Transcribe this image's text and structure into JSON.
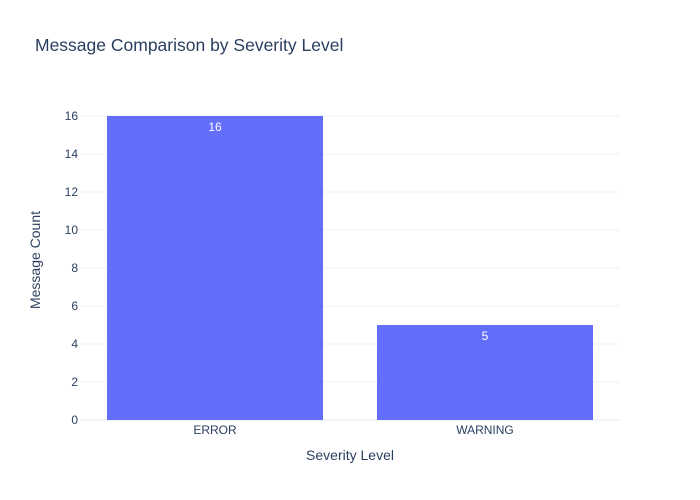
{
  "chart_data": {
    "type": "bar",
    "title": "Message Comparison by Severity Level",
    "xlabel": "Severity Level",
    "ylabel": "Message Count",
    "categories": [
      "ERROR",
      "WARNING"
    ],
    "values": [
      16,
      5
    ],
    "data_labels": [
      "16",
      "5"
    ],
    "ylim": [
      0,
      16.842
    ],
    "yticks": [
      0,
      2,
      4,
      6,
      8,
      10,
      12,
      14,
      16
    ],
    "ytick_labels": [
      "0",
      "2",
      "4",
      "6",
      "8",
      "10",
      "12",
      "14",
      "16"
    ],
    "grid": true,
    "legend": "none"
  },
  "colors": {
    "bar": "#636efa",
    "title": "#2a3f5f",
    "axis_text": "#2a3f5f",
    "grid": "#ebf0f8",
    "data_label": "#ffffff"
  }
}
